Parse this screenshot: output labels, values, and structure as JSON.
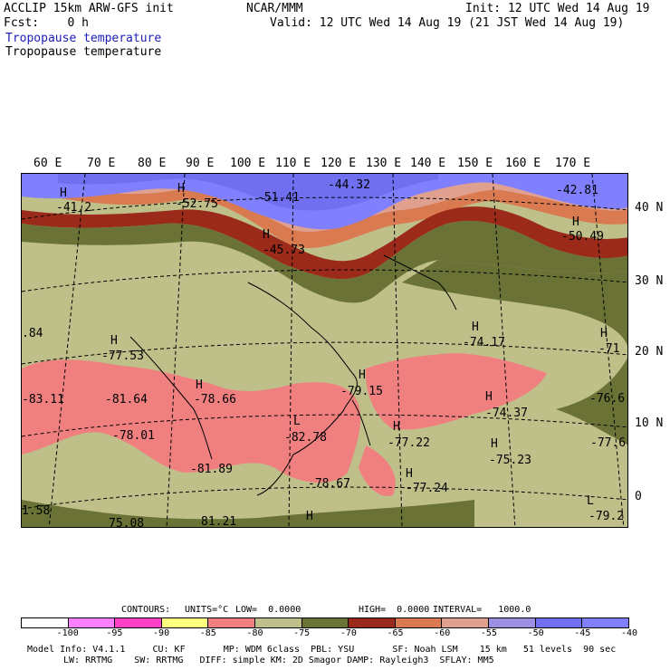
{
  "header": {
    "model": "ACCLIP 15km ARW-GFS init",
    "center": "NCAR/MMM",
    "init": "Init: 12 UTC Wed 14 Aug 19",
    "fcst": "Fcst:    0 h",
    "valid": "Valid: 12 UTC Wed 14 Aug 19 (21 JST Wed 14 Aug 19)",
    "field_title_1": "Tropopause temperature",
    "field_title_2": "Tropopause temperature"
  },
  "lon_labels": [
    "60 E",
    "70 E",
    "80 E",
    "90 E",
    "100 E",
    "110 E",
    "120 E",
    "130 E",
    "140 E",
    "150 E",
    "160 E",
    "170 E"
  ],
  "lat_labels": [
    "40 N",
    "30 N",
    "20 N",
    "10 N",
    "0"
  ],
  "map_annotations": [
    "H",
    "-41.2",
    "H",
    "-52.75",
    "-51.41",
    "-44.32",
    "-42.81",
    "H",
    "-50.49",
    "H",
    "-45.73",
    ".84",
    "H",
    "-77.53",
    "-83.11",
    "-81.64",
    "H",
    "-78.66",
    "H",
    "-79.15",
    "H",
    "-74.17",
    "H",
    "-71",
    "H",
    "-74.37",
    "-76.6",
    "-78.01",
    "L",
    "-82.78",
    "H",
    "-77.22",
    "H",
    "-75.23",
    "-77.6",
    "-81.89",
    "-78.67",
    "H",
    "-77.24",
    "1.58",
    "75.08",
    "81.21",
    "H",
    "L",
    "-79.2"
  ],
  "contour_info": {
    "contours": "CONTOURS:",
    "units": "UNITS=°C",
    "low": "LOW=  0.0000",
    "high": "HIGH=  0.0000",
    "interval": "INTERVAL=   1000.0"
  },
  "legend": {
    "ticks": [
      "-100",
      "-95",
      "-90",
      "-85",
      "-80",
      "-75",
      "-70",
      "-65",
      "-60",
      "-55",
      "-50",
      "-45",
      "-40",
      "°C"
    ],
    "colors": [
      "#ffffff",
      "#ff80ff",
      "#ff40c8",
      "#ffff80",
      "#f08080",
      "#bfbf8a",
      "#6b7236",
      "#9c2a1a",
      "#d97a50",
      "#e0a090",
      "#9a8fe0",
      "#6f6ff0",
      "#8080ff"
    ]
  },
  "footer": {
    "line1": "Model Info: V4.1.1     CU: KF       MP: WDM 6class  PBL: YSU       SF: Noah LSM    15 km   51 levels  90 sec",
    "line2": "LW: RRTMG    SW: RRTMG   DIFF: simple KM: 2D Smagor DAMP: Rayleigh3  SFLAY: MM5"
  }
}
